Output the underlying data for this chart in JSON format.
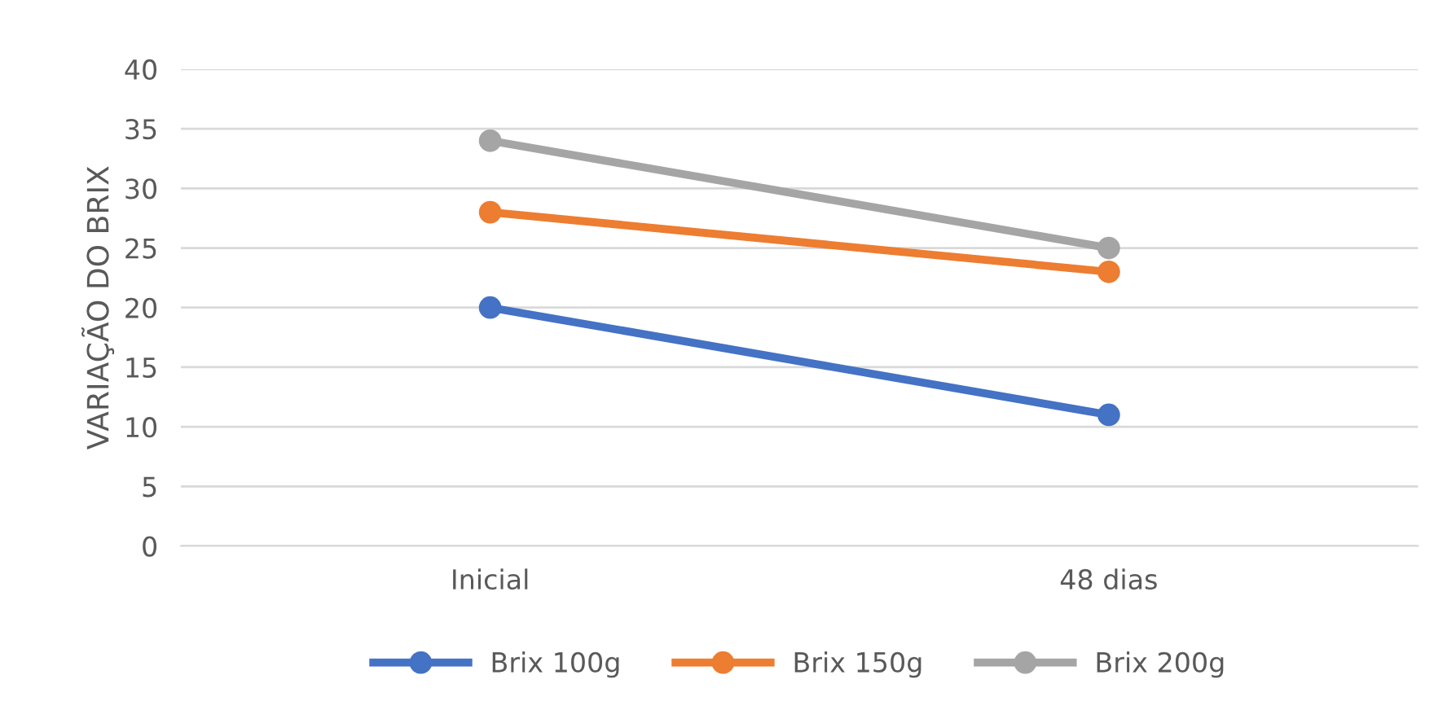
{
  "chart_data": {
    "type": "line",
    "ylabel": "VARIAÇÃO DO BRIX",
    "categories": [
      "Inicial",
      "48 dias"
    ],
    "series": [
      {
        "name": "Brix 100g",
        "color": "#4472c4",
        "values": [
          20,
          11
        ]
      },
      {
        "name": "Brix 150g",
        "color": "#ed7d31",
        "values": [
          28,
          23
        ]
      },
      {
        "name": "Brix 200g",
        "color": "#a5a5a5",
        "values": [
          34,
          25
        ]
      }
    ],
    "ylim": [
      0,
      40
    ],
    "yticks": [
      0,
      5,
      10,
      15,
      20,
      25,
      30,
      35,
      40
    ],
    "grid": "y",
    "legend": "bottom",
    "marker": "circle",
    "line_style": "solid"
  }
}
